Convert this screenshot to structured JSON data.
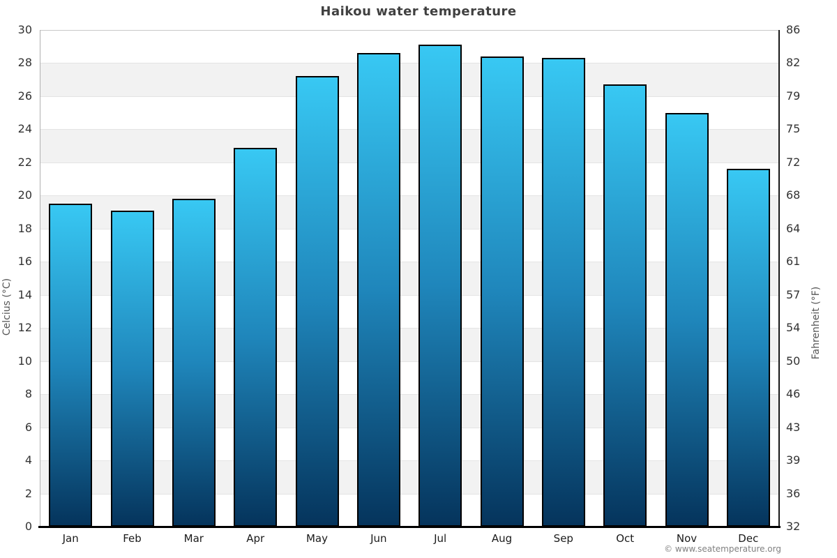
{
  "title": "Haikou water temperature",
  "watermark": "© www.seatemperature.org",
  "chart_data": {
    "type": "bar",
    "title": "Haikou water temperature",
    "categories": [
      "Jan",
      "Feb",
      "Mar",
      "Apr",
      "May",
      "Jun",
      "Jul",
      "Aug",
      "Sep",
      "Oct",
      "Nov",
      "Dec"
    ],
    "values": [
      19.5,
      19.1,
      19.8,
      22.9,
      27.2,
      28.6,
      29.1,
      28.4,
      28.3,
      26.7,
      25.0,
      21.6
    ],
    "values_unit": "°C",
    "ylabel_left": "Celcius (°C)",
    "ylabel_right": "Fahrenheit (°F)",
    "xlabel": "",
    "ylim": [
      0,
      30
    ],
    "y_tick_step": 2,
    "y_ticks_celsius": [
      0,
      2,
      4,
      6,
      8,
      10,
      12,
      14,
      16,
      18,
      20,
      22,
      24,
      26,
      28,
      30
    ],
    "y_ticks_fahrenheit_labels": [
      "32",
      "36",
      "39",
      "43",
      "46",
      "50",
      "54",
      "57",
      "61",
      "64",
      "68",
      "72",
      "75",
      "79",
      "82",
      "86"
    ],
    "legend": "none",
    "grid": "horizontal gridlines every 2°C with alternating white / light-gray bands",
    "band_color": "#f2f2f2",
    "gridline_color": "#e4e4e4",
    "bar_gradient_top": "#38c8f3",
    "bar_gradient_mid": "#1f86bb",
    "bar_gradient_bottom": "#05345c",
    "bar_border_color": "#000000",
    "title_color": "#404040",
    "tick_label_color": "#333333",
    "axis_title_color": "#555555"
  }
}
